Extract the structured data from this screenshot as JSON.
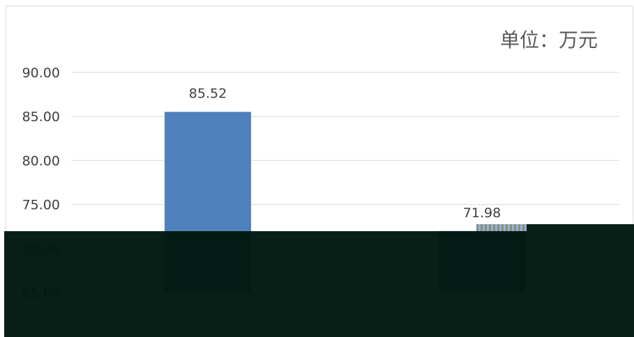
{
  "chart_data": {
    "type": "bar",
    "unit": "单位：万元",
    "categories": [
      "",
      ""
    ],
    "values": [
      85.52,
      71.98
    ],
    "value_labels": [
      "85.52",
      "71.98"
    ],
    "ylim": [
      65,
      90
    ],
    "yticks": [
      "65.00",
      "70.00",
      "75.00",
      "80.00",
      "85.00",
      "90.00"
    ],
    "grid": true,
    "colors": {
      "bar": "#4f81bd",
      "grid": "#d9d9d9",
      "text": "#404040"
    }
  }
}
